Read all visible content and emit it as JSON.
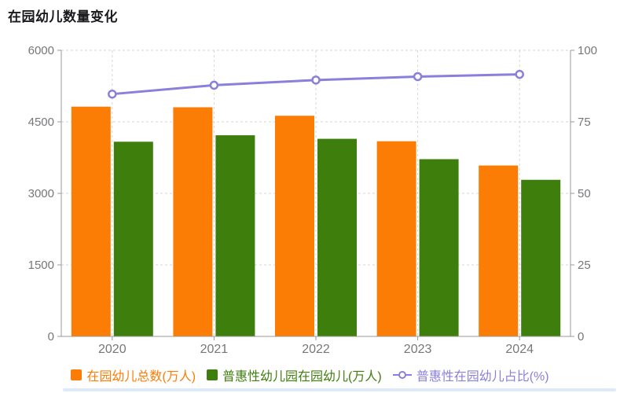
{
  "title": "在园幼儿数量变化",
  "colors": {
    "bar_total": "#fb7d05",
    "bar_inclusive": "#3e7e0c",
    "line_ratio": "#8a7fdb",
    "title_text": "#1b1b1f",
    "axis_line": "#999999",
    "axis_label": "#76777a",
    "grid_line": "#d6d6d6",
    "background": "#ffffff",
    "scrollbar": "#dfeaf8"
  },
  "chart_data": {
    "type": "bar",
    "title": "在园幼儿数量变化",
    "categories": [
      "2020",
      "2021",
      "2022",
      "2023",
      "2024"
    ],
    "series": [
      {
        "key": "total",
        "name": "在园幼儿总数(万人)",
        "type": "bar",
        "axis": "left",
        "color": "#fb7d05",
        "values": [
          4818.3,
          4805.2,
          4627.6,
          4093.0,
          3584.0
        ]
      },
      {
        "key": "inclusive",
        "name": "普惠性幼儿园在园幼儿(万人)",
        "type": "bar",
        "axis": "left",
        "color": "#3e7e0c",
        "values": [
          4082.8,
          4218.2,
          4144.1,
          3717.0,
          3283.9
        ]
      },
      {
        "key": "ratio",
        "name": "普惠性在园幼儿占比(%)",
        "type": "line",
        "axis": "right",
        "color": "#8a7fdb",
        "values": [
          84.7,
          87.8,
          89.6,
          90.8,
          91.6
        ]
      }
    ],
    "left_axis": {
      "ticks": [
        0,
        1500,
        3000,
        4500,
        6000
      ],
      "min": 0,
      "max": 6000
    },
    "right_axis": {
      "ticks": [
        0,
        25,
        50,
        75,
        100
      ],
      "min": 0,
      "max": 100
    },
    "grid": "dashed",
    "legend_position": "bottom",
    "xlabel": "",
    "ylabel_left": "",
    "ylabel_right": ""
  },
  "legend": {
    "items": [
      {
        "label": "在园幼儿总数(万人)",
        "marker": "square",
        "color": "#fb7d05"
      },
      {
        "label": "普惠性幼儿园在园幼儿(万人)",
        "marker": "square",
        "color": "#3e7e0c"
      },
      {
        "label": "普惠性在园幼儿占比(%)",
        "marker": "line-circle",
        "color": "#8a7fdb"
      }
    ]
  }
}
